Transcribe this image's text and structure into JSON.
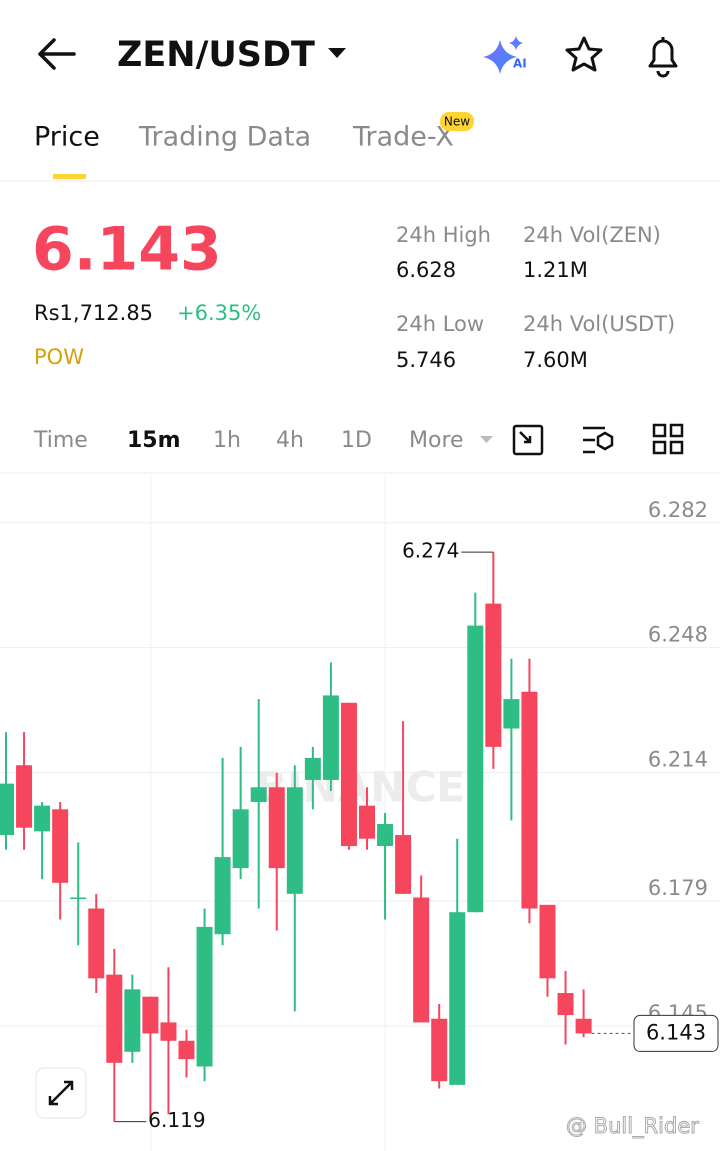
{
  "header": {
    "title": "ZEN/USDT",
    "ai_badge": "AI"
  },
  "tabs": {
    "items": [
      "Price",
      "Trading Data",
      "Trade-X"
    ],
    "badge": "New"
  },
  "ticker": {
    "price": "6.143",
    "fiat_price": "Rs1,712.85",
    "change": "+6.35%",
    "tag": "POW"
  },
  "stats": [
    {
      "label": "24h High",
      "value": "6.628"
    },
    {
      "label": "24h Vol(ZEN)",
      "value": "1.21M"
    },
    {
      "label": "24h Low",
      "value": "5.746"
    },
    {
      "label": "24h Vol(USDT)",
      "value": "7.60M"
    }
  ],
  "intervals": [
    "Time",
    "15m",
    "1h",
    "4h",
    "1D",
    "More"
  ],
  "watermarks": [
    "BINANCE",
    "@ Bull_Rider"
  ],
  "chart_data": {
    "type": "candlestick",
    "series": [
      {
        "name": "open",
        "values": [
          6.197,
          6.216,
          6.198,
          6.204,
          6.18,
          6.177,
          6.159,
          6.138,
          6.153,
          6.146,
          6.141,
          6.134,
          6.17,
          6.188,
          6.206,
          6.21,
          6.181,
          6.212,
          6.212,
          6.233,
          6.205,
          6.194,
          6.197,
          6.18,
          6.147,
          6.129,
          6.176,
          6.26,
          6.226,
          6.236,
          6.178,
          6.154,
          6.147
        ]
      },
      {
        "name": "high",
        "values": [
          6.225,
          6.225,
          6.206,
          6.206,
          6.195,
          6.181,
          6.166,
          6.159,
          6.153,
          6.161,
          6.144,
          6.177,
          6.218,
          6.221,
          6.234,
          6.214,
          6.216,
          6.221,
          6.244,
          6.233,
          6.21,
          6.203,
          6.228,
          6.186,
          6.151,
          6.196,
          6.263,
          6.274,
          6.245,
          6.245,
          6.178,
          6.16,
          6.155
        ]
      },
      {
        "name": "low",
        "values": [
          6.193,
          6.193,
          6.185,
          6.174,
          6.167,
          6.154,
          6.119,
          6.135,
          6.119,
          6.121,
          6.131,
          6.13,
          6.167,
          6.185,
          6.177,
          6.171,
          6.149,
          6.204,
          6.209,
          6.193,
          6.193,
          6.174,
          6.181,
          6.146,
          6.128,
          6.129,
          6.176,
          6.215,
          6.201,
          6.173,
          6.153,
          6.14,
          6.142
        ]
      },
      {
        "name": "close",
        "values": [
          6.211,
          6.199,
          6.205,
          6.184,
          6.18,
          6.158,
          6.135,
          6.155,
          6.143,
          6.141,
          6.136,
          6.172,
          6.191,
          6.204,
          6.21,
          6.188,
          6.21,
          6.218,
          6.235,
          6.194,
          6.196,
          6.2,
          6.181,
          6.146,
          6.13,
          6.176,
          6.254,
          6.221,
          6.234,
          6.177,
          6.158,
          6.148,
          6.143
        ]
      }
    ],
    "up_color": "#2ebd85",
    "down_color": "#f6465d",
    "ylim": [
      6.111,
      6.295
    ],
    "yticks": [
      6.282,
      6.248,
      6.214,
      6.179,
      6.145
    ],
    "grid": true,
    "high_label": "6.274",
    "low_label": "6.119",
    "last_price_label": "6.143"
  }
}
